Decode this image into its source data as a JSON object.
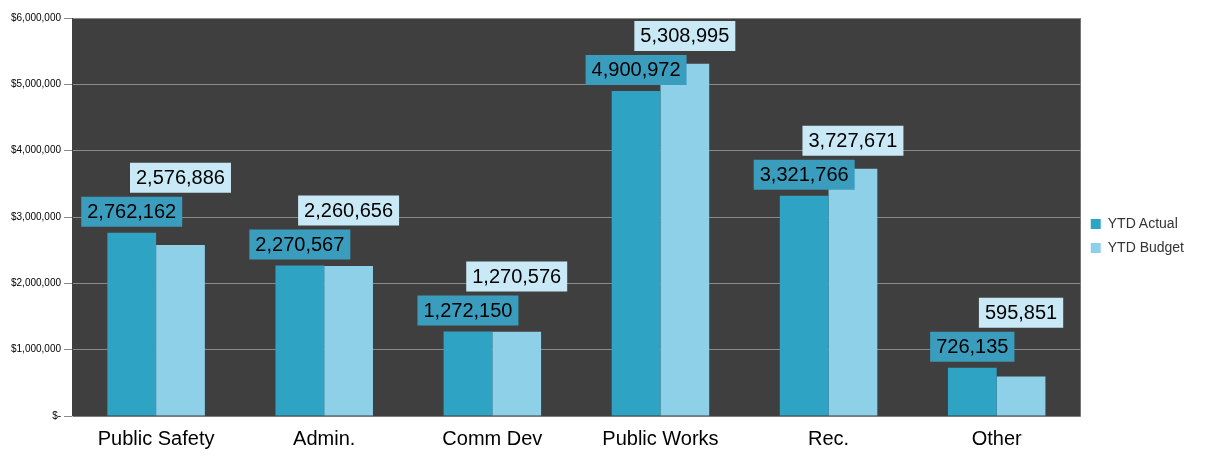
{
  "chart_data": {
    "type": "bar",
    "categories": [
      "Public Safety",
      "Admin.",
      "Comm Dev",
      "Public Works",
      "Rec.",
      "Other"
    ],
    "series": [
      {
        "name": "YTD Actual",
        "color": "#2ea3c4",
        "values": [
          2762162,
          2270567,
          1272150,
          4900972,
          3321766,
          726135
        ],
        "value_labels": [
          "2,762,162",
          "2,270,567",
          "1,272,150",
          "4,900,972",
          "3,321,766",
          "726,135"
        ]
      },
      {
        "name": "YTD Budget",
        "color": "#8ed0e8",
        "values": [
          2576886,
          2260656,
          1270576,
          5308995,
          3727671,
          595851
        ],
        "value_labels": [
          "2,576,886",
          "2,260,656",
          "1,270,576",
          "5,308,995",
          "3,727,671",
          "595,851"
        ]
      }
    ],
    "ylim": [
      0,
      6000000
    ],
    "yticks": [
      {
        "value": 0,
        "label": "$-"
      },
      {
        "value": 1000000,
        "label": "$1,000,000"
      },
      {
        "value": 2000000,
        "label": "$2,000,000"
      },
      {
        "value": 3000000,
        "label": "$3,000,000"
      },
      {
        "value": 4000000,
        "label": "$4,000,000"
      },
      {
        "value": 5000000,
        "label": "$5,000,000"
      },
      {
        "value": 6000000,
        "label": "$6,000,000"
      }
    ],
    "grid": "y",
    "legend": "right"
  }
}
